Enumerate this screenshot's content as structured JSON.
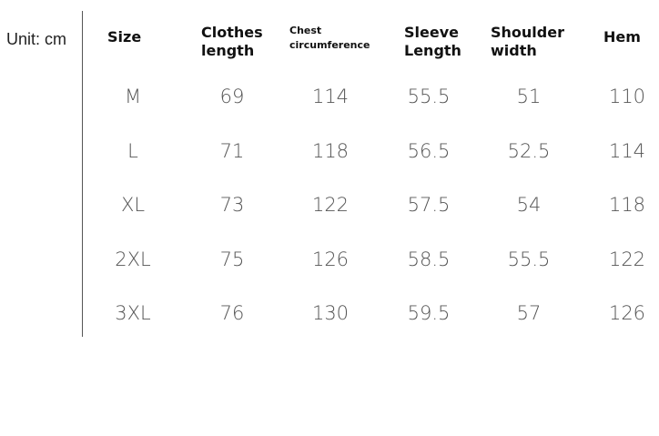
{
  "unit": "Unit: cm",
  "headers": [
    "Size",
    "Clothes\nlength",
    "Chest\ncircumference",
    "Sleeve\nLength",
    "Shoulder\nwidth",
    "Hem"
  ],
  "rows": [
    [
      "M",
      "69",
      "114",
      "55.5",
      "51",
      "110"
    ],
    [
      "L",
      "71",
      "118",
      "56.5",
      "52.5",
      "114"
    ],
    [
      "XL",
      "73",
      "122",
      "57.5",
      "54",
      "118"
    ],
    [
      "2XL",
      "75",
      "126",
      "58.5",
      "55.5",
      "122"
    ],
    [
      "3XL",
      "76",
      "130",
      "59.5",
      "57",
      "126"
    ]
  ]
}
